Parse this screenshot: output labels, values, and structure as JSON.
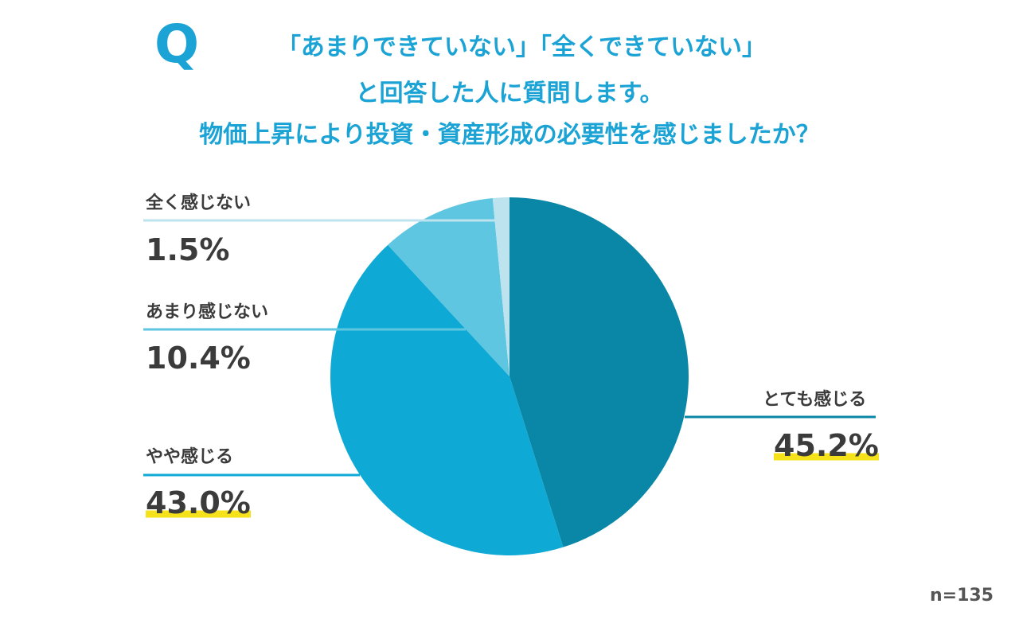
{
  "header": {
    "q_mark": "Q",
    "line1": "「あまりできていない」「全くできていない」",
    "line2": "と回答した人に質問します。",
    "line3": "物価上昇により投資・資産形成の必要性を感じましたか？"
  },
  "chart_data": {
    "type": "pie",
    "start": "12 o'clock",
    "direction": "clockwise",
    "slices": [
      {
        "label": "とても感じる",
        "value": 45.2,
        "display": "45.2%",
        "color": "#0a86a6"
      },
      {
        "label": "やや感じる",
        "value": 43.0,
        "display": "43.0%",
        "color": "#0ea9d4"
      },
      {
        "label": "あまり感じない",
        "value": 10.4,
        "display": "10.4%",
        "color": "#5ec6e0"
      },
      {
        "label": "全く感じない",
        "value": 1.5,
        "display": "1.5%",
        "color": "#bde3ee"
      }
    ],
    "highlighted": [
      "とても感じる",
      "やや感じる"
    ],
    "sample": "n=135"
  }
}
